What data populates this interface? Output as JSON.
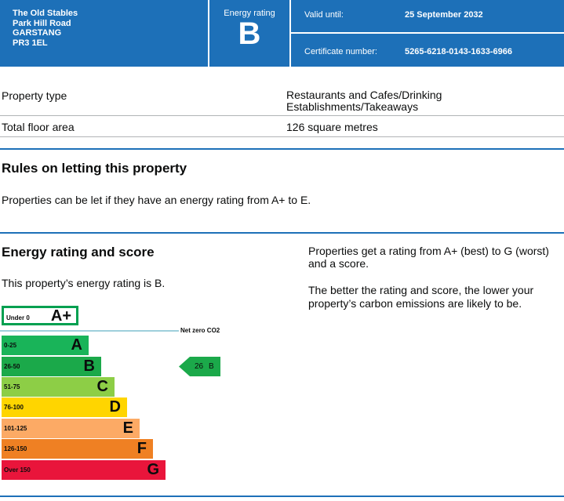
{
  "header": {
    "address": [
      "The Old Stables",
      "Park Hill Road",
      "GARSTANG",
      "PR3 1EL"
    ],
    "energy_rating_label": "Energy rating",
    "energy_rating": "B",
    "valid_until_label": "Valid until:",
    "valid_until": "25 September 2032",
    "certificate_number_label": "Certificate number:",
    "certificate_number": "5265-6218-0143-1633-6966"
  },
  "property": {
    "rows": [
      [
        "Property type",
        "Restaurants and Cafes/Drinking Establishments/Takeaways"
      ],
      [
        "Total floor area",
        "126 square metres"
      ]
    ]
  },
  "rules": {
    "title": "Rules on letting this property",
    "text": "Properties can be let if they have an energy rating from A+ to E."
  },
  "rating": {
    "title": "Energy rating and score",
    "text": "This property’s energy rating is B.",
    "side": [
      "Properties get a rating from A+ (best) to G (worst) and a score.",
      "The better the rating and score, the lower your property’s carbon emissions are likely to be."
    ],
    "net_zero": "Net zero CO2",
    "bands": [
      {
        "range": "Under 0",
        "letter": "A+"
      },
      {
        "range": "0-25",
        "letter": "A"
      },
      {
        "range": "26-50",
        "letter": "B"
      },
      {
        "range": "51-75",
        "letter": "C"
      },
      {
        "range": "76-100",
        "letter": "D"
      },
      {
        "range": "101-125",
        "letter": "E"
      },
      {
        "range": "126-150",
        "letter": "F"
      },
      {
        "range": "Over 150",
        "letter": "G"
      }
    ],
    "current": {
      "score": "26",
      "letter": "B"
    }
  }
}
